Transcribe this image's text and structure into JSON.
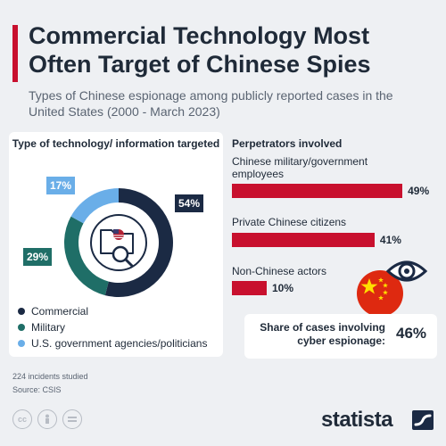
{
  "header": {
    "title": "Commercial Technology Most Often Target of Chinese Spies",
    "subtitle": "Types of Chinese espionage among publicly reported cases in the United States (2000 - March 2023)"
  },
  "colors": {
    "accent": "#c8102e",
    "commercial": "#1b2a44",
    "military": "#1f6e67",
    "government": "#6aaee8",
    "bar": "#c8102e"
  },
  "chart_data": [
    {
      "type": "pie",
      "title": "Type of technology/ information targeted",
      "labels": [
        "Commercial",
        "Military",
        "U.S. government agencies/politicians"
      ],
      "values": [
        54,
        29,
        17
      ],
      "value_labels": [
        "54%",
        "29%",
        "17%"
      ],
      "colors": [
        "#1b2a44",
        "#1f6e67",
        "#6aaee8"
      ],
      "legend": "bottom-left"
    },
    {
      "type": "bar",
      "title": "Perpetrators involved",
      "categories": [
        "Chinese military/government employees",
        "Private Chinese citizens",
        "Non-Chinese actors"
      ],
      "values": [
        49,
        41,
        10
      ],
      "value_labels": [
        "49%",
        "41%",
        "10%"
      ],
      "xlim": [
        0,
        100
      ]
    }
  ],
  "share": {
    "label": "Share of cases involving cyber espionage:",
    "value": "46%"
  },
  "footer": {
    "note": "224 incidents studied",
    "source": "Source: CSIS",
    "brand": "statista",
    "license_icons": [
      "cc-icon",
      "person-icon",
      "equals-icon"
    ]
  }
}
